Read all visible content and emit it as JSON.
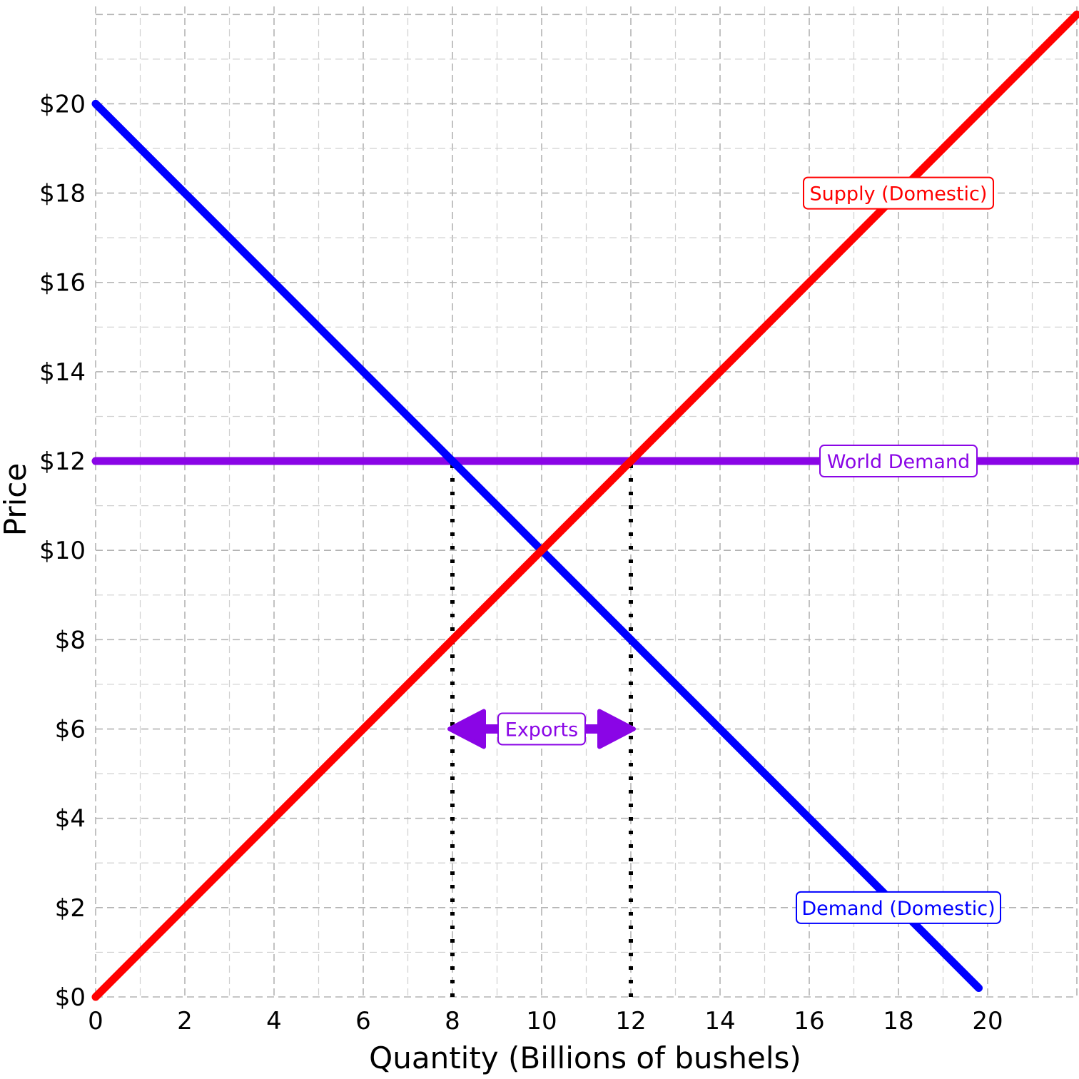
{
  "chart_data": {
    "type": "line",
    "xlabel": "Quantity (Billions of bushels)",
    "ylabel": "Price",
    "xlim": [
      0,
      22
    ],
    "ylim": [
      0,
      20
    ],
    "x_ticks": [
      0,
      2,
      4,
      6,
      8,
      10,
      12,
      14,
      16,
      18,
      20
    ],
    "x_tick_labels": [
      "0",
      "2",
      "4",
      "6",
      "8",
      "10",
      "12",
      "14",
      "16",
      "18",
      "20"
    ],
    "y_ticks": [
      0,
      2,
      4,
      6,
      8,
      10,
      12,
      14,
      16,
      18,
      20
    ],
    "y_tick_labels": [
      "$0",
      "$2",
      "$4",
      "$6",
      "$8",
      "$10",
      "$12",
      "$14",
      "$16",
      "$18",
      "$20"
    ],
    "grid": true,
    "series": [
      {
        "name": "Supply (Domestic)",
        "color": "#ff0000",
        "x": [
          0,
          22
        ],
        "y": [
          0,
          22
        ]
      },
      {
        "name": "Demand (Domestic)",
        "color": "#0000ff",
        "x": [
          0,
          19.8
        ],
        "y": [
          20,
          0.2
        ]
      },
      {
        "name": "World Demand",
        "color": "#8a05e6",
        "x": [
          0,
          22
        ],
        "y": [
          12,
          12
        ]
      }
    ],
    "curve_labels": [
      {
        "text": "Supply (Domestic)",
        "x": 18,
        "y": 18,
        "color": "#ff0000"
      },
      {
        "text": "World Demand",
        "x": 18,
        "y": 12,
        "color": "#8a05e6"
      },
      {
        "text": "Demand (Domestic)",
        "x": 18,
        "y": 2,
        "color": "#0000ff"
      }
    ],
    "reference_lines": [
      {
        "x": 8,
        "y_from": 0,
        "y_to": 12,
        "style": "dotted",
        "color": "#000000"
      },
      {
        "x": 12,
        "y_from": 0,
        "y_to": 12,
        "style": "dotted",
        "color": "#000000"
      }
    ],
    "annotations": [
      {
        "text": "Exports",
        "type": "double-arrow",
        "x_from": 8,
        "x_to": 12,
        "y": 6,
        "color": "#8a05e6"
      }
    ]
  }
}
